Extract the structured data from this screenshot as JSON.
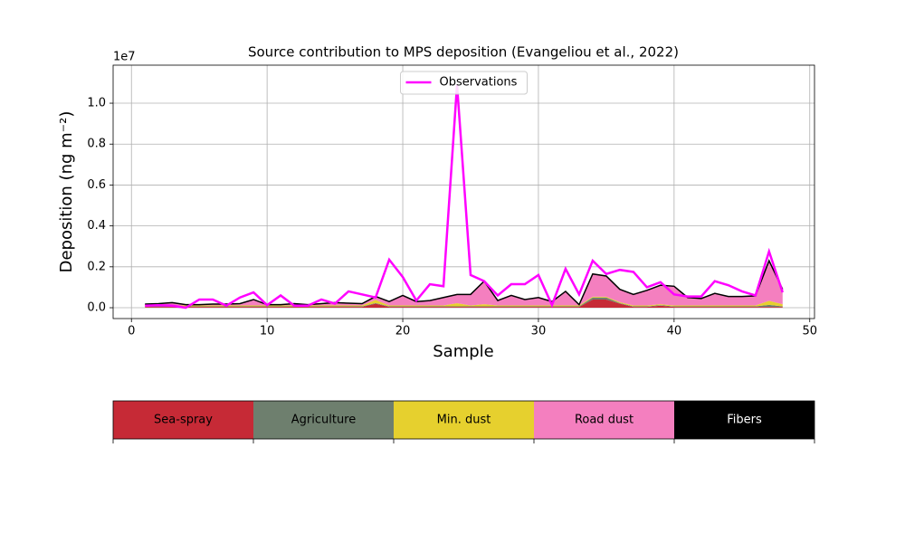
{
  "chart_data": {
    "type": "stacked_area",
    "title": "Source contribution to MPS deposition (Evangeliou et al., 2022)",
    "xlabel": "Sample",
    "ylabel": "Deposition (ng m⁻²)",
    "y_offset_label": "1e7",
    "x": [
      1,
      2,
      3,
      4,
      5,
      6,
      7,
      8,
      9,
      10,
      11,
      12,
      13,
      14,
      15,
      16,
      17,
      18,
      19,
      20,
      21,
      22,
      23,
      24,
      25,
      26,
      27,
      28,
      29,
      30,
      31,
      32,
      33,
      34,
      35,
      36,
      37,
      38,
      39,
      40,
      41,
      42,
      43,
      44,
      45,
      46,
      47,
      48
    ],
    "series": [
      {
        "name": "Sea-spray",
        "color": "#c62a36",
        "values": [
          0.004,
          0.004,
          0.004,
          0.004,
          0.004,
          0.004,
          0.004,
          0.004,
          0.004,
          0.004,
          0.004,
          0.004,
          0.004,
          0.004,
          0.004,
          0.004,
          0.004,
          0.02,
          0.004,
          0.004,
          0.004,
          0.004,
          0.004,
          0.004,
          0.004,
          0.004,
          0.004,
          0.004,
          0.004,
          0.004,
          0.004,
          0.004,
          0.004,
          0.04,
          0.04,
          0.02,
          0.004,
          0.004,
          0.01,
          0.004,
          0.004,
          0.004,
          0.004,
          0.004,
          0.004,
          0.004,
          0.004,
          0.004
        ]
      },
      {
        "name": "Agriculture",
        "color": "#6e7f6e",
        "values": [
          0.003,
          0.003,
          0.003,
          0.003,
          0.003,
          0.003,
          0.003,
          0.003,
          0.003,
          0.003,
          0.003,
          0.003,
          0.003,
          0.003,
          0.003,
          0.003,
          0.003,
          0.003,
          0.003,
          0.003,
          0.003,
          0.003,
          0.003,
          0.003,
          0.003,
          0.003,
          0.003,
          0.003,
          0.003,
          0.003,
          0.003,
          0.003,
          0.003,
          0.01,
          0.01,
          0.003,
          0.003,
          0.003,
          0.003,
          0.003,
          0.003,
          0.003,
          0.003,
          0.003,
          0.003,
          0.003,
          0.01,
          0.003
        ]
      },
      {
        "name": "Min. dust",
        "color": "#e6d02e",
        "values": [
          0.004,
          0.004,
          0.004,
          0.004,
          0.004,
          0.004,
          0.004,
          0.004,
          0.004,
          0.004,
          0.004,
          0.004,
          0.004,
          0.004,
          0.004,
          0.004,
          0.004,
          0.015,
          0.004,
          0.004,
          0.004,
          0.004,
          0.004,
          0.015,
          0.004,
          0.01,
          0.004,
          0.004,
          0.004,
          0.004,
          0.004,
          0.004,
          0.004,
          0.004,
          0.004,
          0.004,
          0.004,
          0.004,
          0.004,
          0.004,
          0.004,
          0.004,
          0.004,
          0.004,
          0.004,
          0.004,
          0.02,
          0.01
        ]
      },
      {
        "name": "Road dust",
        "color": "#f47fbf",
        "values": [
          0.005,
          0.007,
          0.012,
          0.002,
          0.002,
          0.005,
          0.005,
          0.007,
          0.027,
          0.002,
          0.002,
          0.007,
          0.002,
          0.007,
          0.012,
          0.009,
          0.007,
          0.015,
          0.017,
          0.047,
          0.017,
          0.022,
          0.037,
          0.041,
          0.052,
          0.111,
          0.022,
          0.047,
          0.027,
          0.037,
          0.017,
          0.067,
          0.002,
          0.109,
          0.099,
          0.061,
          0.052,
          0.072,
          0.091,
          0.092,
          0.037,
          0.032,
          0.057,
          0.042,
          0.042,
          0.045,
          0.194,
          0.071
        ]
      },
      {
        "name": "Fibers",
        "color": "#000000",
        "values": [
          0.002,
          0.002,
          0.002,
          0.002,
          0.002,
          0.002,
          0.002,
          0.002,
          0.002,
          0.002,
          0.002,
          0.002,
          0.002,
          0.002,
          0.002,
          0.002,
          0.002,
          0.002,
          0.002,
          0.002,
          0.002,
          0.002,
          0.002,
          0.002,
          0.002,
          0.002,
          0.002,
          0.002,
          0.002,
          0.002,
          0.002,
          0.002,
          0.002,
          0.002,
          0.002,
          0.002,
          0.002,
          0.002,
          0.002,
          0.002,
          0.002,
          0.002,
          0.002,
          0.002,
          0.002,
          0.002,
          0.002,
          0.002
        ]
      }
    ],
    "observations": {
      "name": "Observations",
      "color": "#ff00ff",
      "values": [
        0.01,
        0.012,
        0.01,
        0,
        0.04,
        0.04,
        0.01,
        0.05,
        0.075,
        0.013,
        0.06,
        0.01,
        0.01,
        0.04,
        0.02,
        0.08,
        0.065,
        0.05,
        0.235,
        0.15,
        0.035,
        0.115,
        0.105,
        1.09,
        0.16,
        0.13,
        0.06,
        0.115,
        0.115,
        0.16,
        0.013,
        0.19,
        0.065,
        0.23,
        0.165,
        0.185,
        0.175,
        0.1,
        0.125,
        0.065,
        0.055,
        0.055,
        0.13,
        0.11,
        0.08,
        0.06,
        0.275,
        0.075
      ]
    },
    "xlim": [
      -1.35,
      50.35
    ],
    "ylim": [
      -0.053,
      1.186
    ],
    "xticks": [
      0,
      10,
      20,
      30,
      40,
      50
    ],
    "yticks": [
      {
        "value": 0,
        "label": "0.0"
      },
      0.2,
      0.4,
      0.6,
      0.8,
      {
        "value": 1,
        "label": "1.0"
      }
    ],
    "grid": true,
    "legend": "upper center"
  }
}
